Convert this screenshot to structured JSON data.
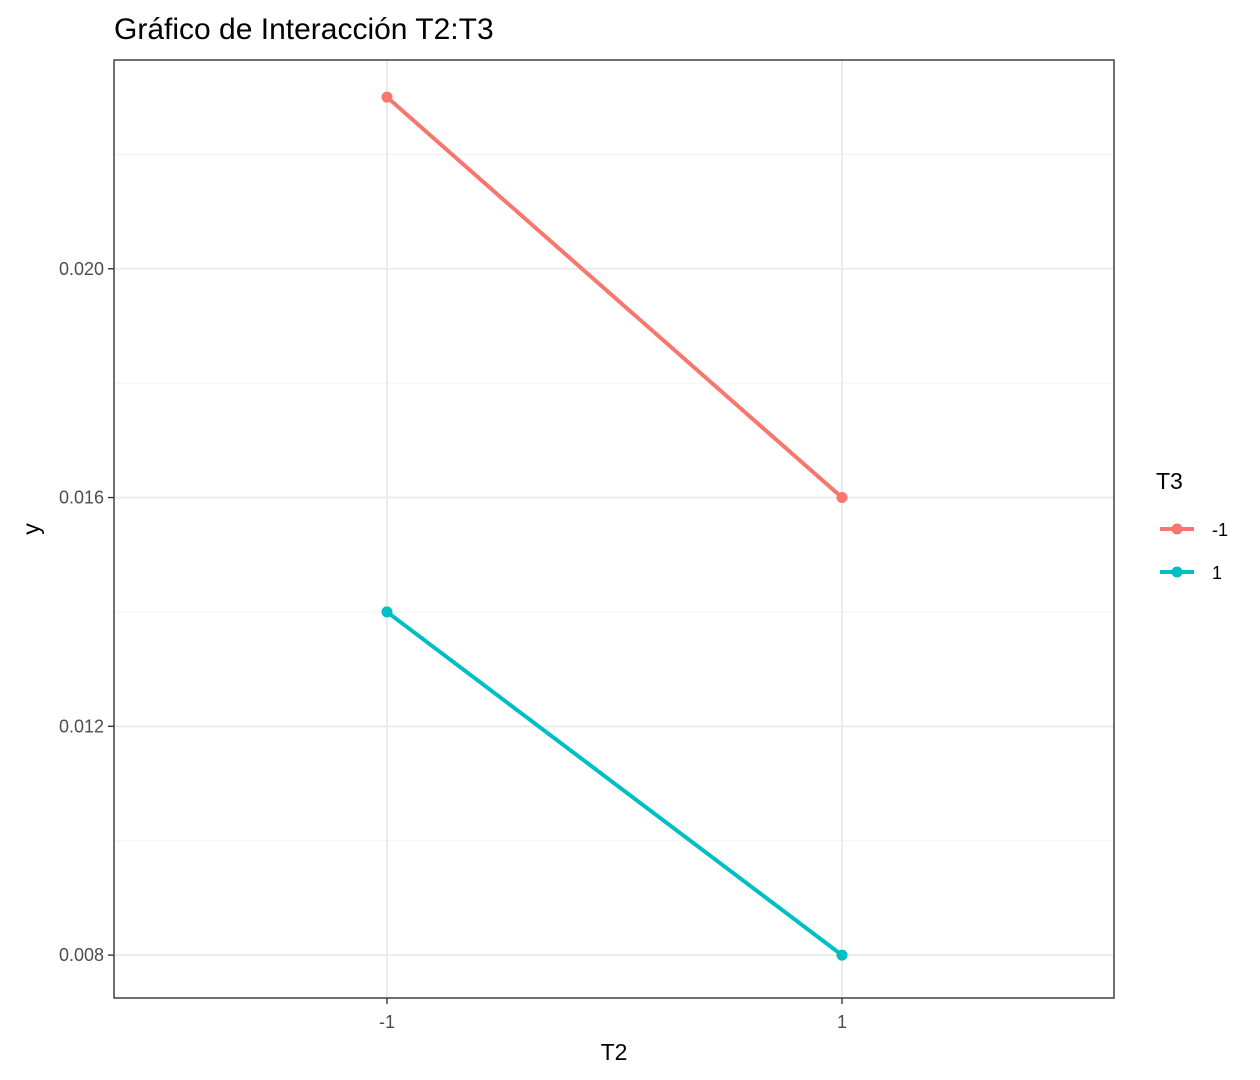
{
  "chart_data": {
    "type": "line",
    "title": "Gráfico de Interacción T2:T3",
    "xlabel": "T2",
    "ylabel": "y",
    "categories": [
      "-1",
      "1"
    ],
    "yticks": [
      "0.008",
      "0.012",
      "0.016",
      "0.020"
    ],
    "ytick_values": [
      0.008,
      0.012,
      0.016,
      0.02
    ],
    "ylim": [
      0.00725,
      0.02365
    ],
    "grid": true,
    "legend": {
      "title": "T3",
      "position": "right"
    },
    "series": [
      {
        "name": "-1",
        "values": [
          0.023,
          0.016
        ],
        "color": "#F8766D"
      },
      {
        "name": "1",
        "values": [
          0.014,
          0.008
        ],
        "color": "#00BFC4"
      }
    ]
  }
}
